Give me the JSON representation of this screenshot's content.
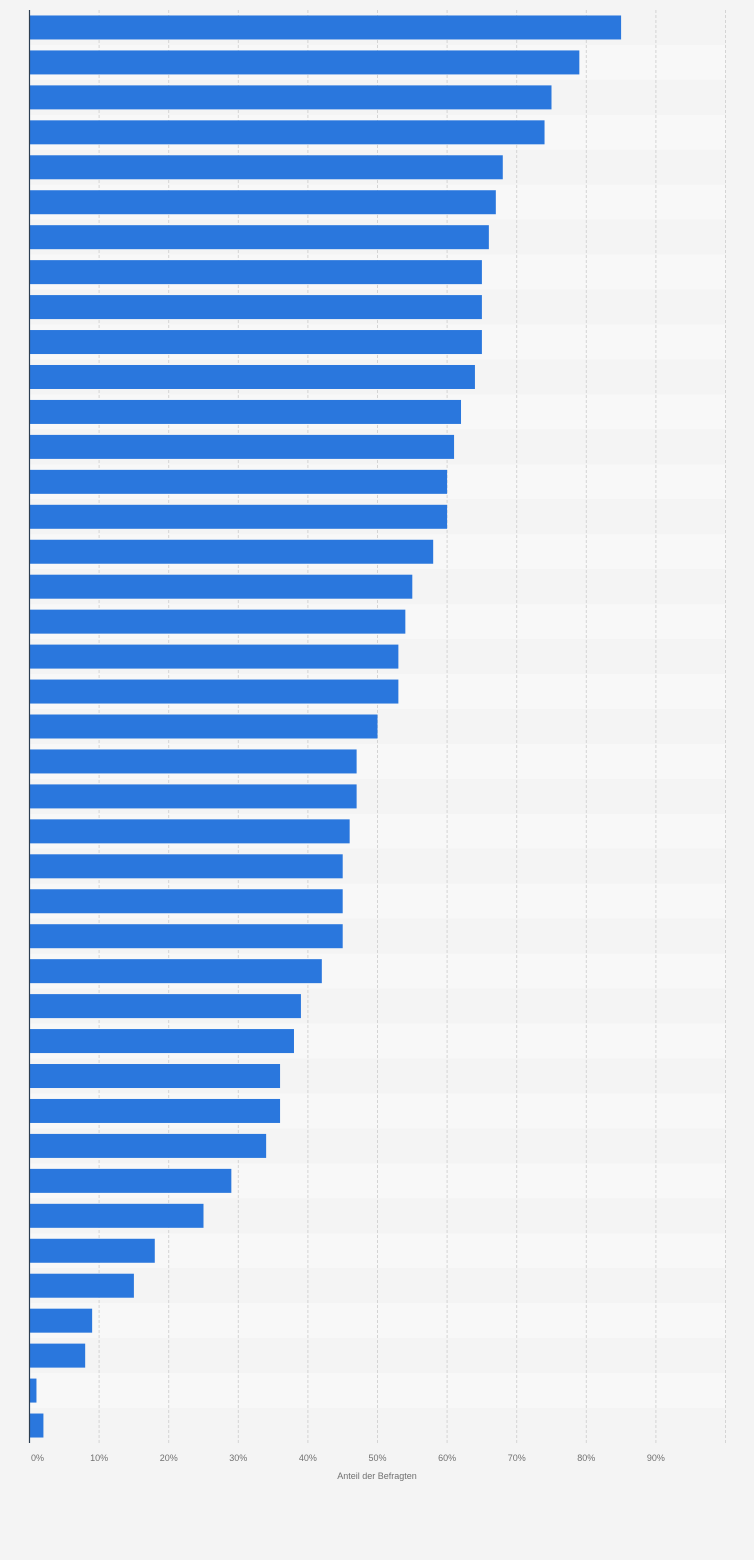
{
  "chart_data": {
    "type": "bar",
    "orientation": "horizontal",
    "title": "",
    "xlabel": "Anteil der Befragten",
    "ylabel": "",
    "xlim": [
      0,
      100
    ],
    "x_ticks": [
      {
        "value": 0,
        "label": "0%"
      },
      {
        "value": 10,
        "label": "10%"
      },
      {
        "value": 20,
        "label": "20%"
      },
      {
        "value": 30,
        "label": "30%"
      },
      {
        "value": 40,
        "label": "40%"
      },
      {
        "value": 50,
        "label": "50%"
      },
      {
        "value": 60,
        "label": "60%"
      },
      {
        "value": 70,
        "label": "70%"
      },
      {
        "value": 80,
        "label": "80%"
      },
      {
        "value": 90,
        "label": "90%"
      }
    ],
    "grid": true,
    "legend": "none",
    "bar_color": "#2a77dd",
    "band_colors": [
      "#f4f4f4",
      "#f8f8f8"
    ],
    "values": [
      85,
      79,
      75,
      74,
      68,
      67,
      66,
      65,
      65,
      65,
      64,
      62,
      61,
      60,
      60,
      58,
      55,
      54,
      53,
      53,
      50,
      47,
      47,
      46,
      45,
      45,
      45,
      42,
      39,
      38,
      36,
      36,
      34,
      29,
      25,
      18,
      15,
      9,
      8,
      1,
      2
    ]
  }
}
